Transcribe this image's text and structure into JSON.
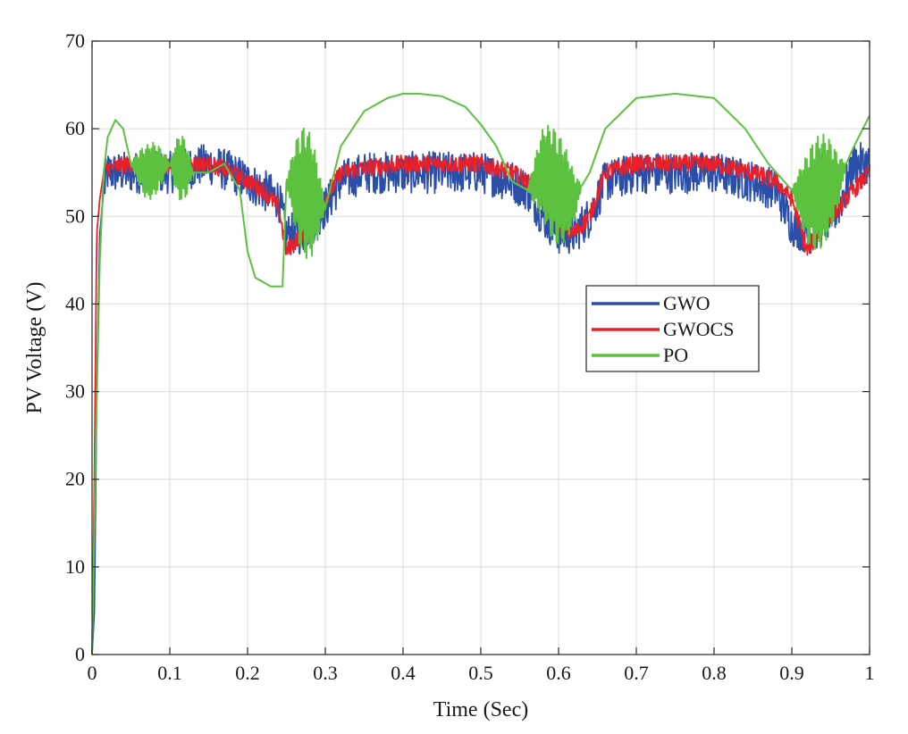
{
  "chart_data": {
    "type": "line",
    "title": "",
    "xlabel": "Time (Sec)",
    "ylabel": "PV Voltage (V)",
    "xlim": [
      0,
      1
    ],
    "ylim": [
      0,
      70
    ],
    "xticks": [
      0,
      0.1,
      0.2,
      0.3,
      0.4,
      0.5,
      0.6,
      0.7,
      0.8,
      0.9,
      1
    ],
    "xtick_labels": [
      "0",
      "0.1",
      "0.2",
      "0.3",
      "0.4",
      "0.5",
      "0.6",
      "0.7",
      "0.8",
      "0.9",
      "1"
    ],
    "yticks": [
      0,
      10,
      20,
      30,
      40,
      50,
      60,
      70
    ],
    "ytick_labels": [
      "0",
      "10",
      "20",
      "30",
      "40",
      "50",
      "60",
      "70"
    ],
    "grid": true,
    "legend_position": "center-right",
    "series": [
      {
        "name": "GWO",
        "color": "#2b4fa8",
        "x": [
          0,
          0.003,
          0.006,
          0.01,
          0.015,
          0.02,
          0.05,
          0.1,
          0.15,
          0.18,
          0.2,
          0.22,
          0.24,
          0.25,
          0.27,
          0.29,
          0.3,
          0.32,
          0.35,
          0.4,
          0.45,
          0.5,
          0.54,
          0.56,
          0.58,
          0.6,
          0.62,
          0.64,
          0.66,
          0.7,
          0.75,
          0.8,
          0.85,
          0.88,
          0.9,
          0.92,
          0.94,
          0.96,
          0.98,
          1.0
        ],
        "y": [
          0,
          5,
          30,
          48,
          53,
          55,
          55,
          55,
          56,
          55,
          54,
          53,
          52,
          48,
          48,
          50,
          51,
          54,
          55,
          55,
          55,
          55,
          54,
          53,
          50,
          48,
          48,
          50,
          54,
          55,
          55,
          55,
          54,
          53,
          49,
          48,
          49,
          51,
          56,
          56
        ],
        "noise": 2.4
      },
      {
        "name": "GWOCS",
        "color": "#e8202a",
        "x": [
          0,
          0.003,
          0.006,
          0.01,
          0.015,
          0.02,
          0.05,
          0.1,
          0.15,
          0.18,
          0.2,
          0.22,
          0.24,
          0.25,
          0.27,
          0.29,
          0.3,
          0.32,
          0.35,
          0.4,
          0.45,
          0.5,
          0.54,
          0.56,
          0.58,
          0.6,
          0.62,
          0.64,
          0.66,
          0.7,
          0.75,
          0.8,
          0.85,
          0.88,
          0.9,
          0.92,
          0.94,
          0.96,
          0.98,
          1.0
        ],
        "y": [
          0,
          20,
          48,
          52,
          55,
          55.5,
          56,
          56,
          56,
          55,
          54,
          53,
          51,
          46,
          48,
          50,
          52,
          55,
          55.5,
          56,
          56,
          56,
          55,
          54,
          52,
          49,
          48,
          50,
          55,
          56,
          56,
          56,
          55,
          54,
          52,
          46,
          49,
          51,
          53,
          55
        ],
        "noise": 1.0
      },
      {
        "name": "PO",
        "color": "#5cc13f",
        "x": [
          0,
          0.005,
          0.01,
          0.015,
          0.02,
          0.03,
          0.04,
          0.05,
          0.07,
          0.1,
          0.13,
          0.15,
          0.17,
          0.19,
          0.2,
          0.21,
          0.23,
          0.245,
          0.25,
          0.27,
          0.3,
          0.32,
          0.35,
          0.38,
          0.4,
          0.42,
          0.45,
          0.48,
          0.5,
          0.52,
          0.54,
          0.56,
          0.58,
          0.6,
          0.62,
          0.64,
          0.66,
          0.7,
          0.75,
          0.8,
          0.84,
          0.87,
          0.89,
          0.9,
          0.92,
          0.94,
          0.96,
          0.98,
          1.0
        ],
        "y": [
          0,
          25,
          45,
          55,
          59,
          61,
          60,
          56,
          55,
          56,
          55,
          55,
          56,
          53,
          46,
          43,
          42,
          42,
          54,
          53,
          51,
          58,
          62,
          63.5,
          64,
          64,
          63.7,
          62.5,
          60.5,
          58,
          54,
          53,
          55,
          53,
          52,
          55,
          60,
          63.5,
          64,
          63.5,
          60,
          56,
          54,
          53,
          52,
          53,
          54,
          58,
          61.5
        ],
        "osc": [
          [
            0.05,
            0.1,
            3.2
          ],
          [
            0.1,
            0.13,
            3.8
          ],
          [
            0.25,
            0.3,
            7.5
          ],
          [
            0.56,
            0.63,
            6.5
          ],
          [
            0.9,
            0.97,
            6.5
          ]
        ]
      }
    ]
  }
}
